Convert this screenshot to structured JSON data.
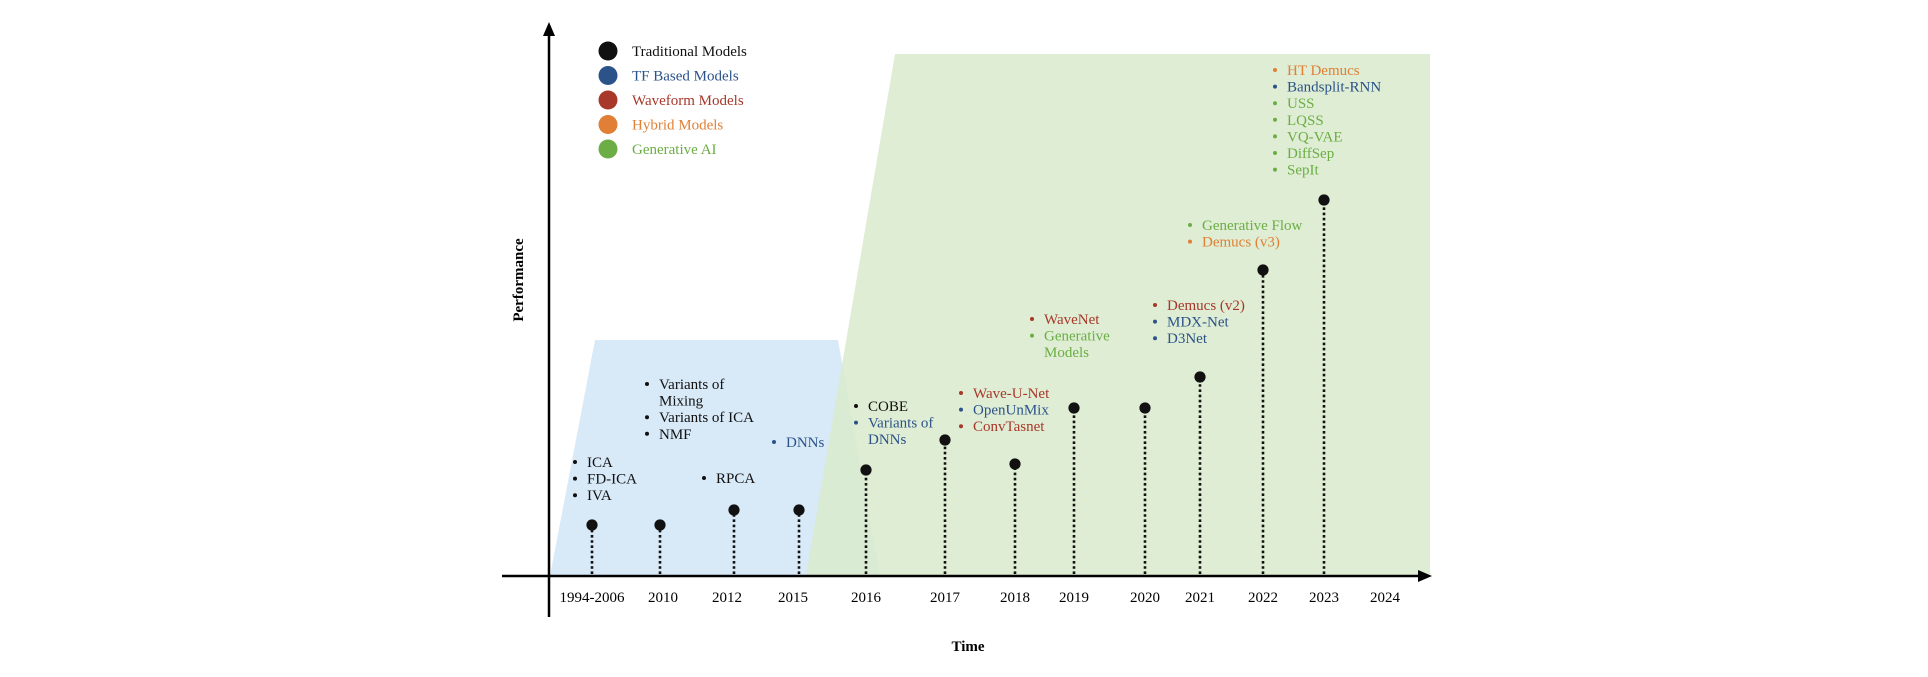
{
  "axes": {
    "x_title": "Time",
    "y_title": "Performance"
  },
  "legend": [
    {
      "label": "Traditional Models",
      "color": "#111111",
      "text_color": "#111111"
    },
    {
      "label": "TF Based Models",
      "color": "#2c5389",
      "text_color": "#2c5389"
    },
    {
      "label": "Waveform Models",
      "color": "#a8382a",
      "text_color": "#a8382a"
    },
    {
      "label": "Hybrid Models",
      "color": "#e07f35",
      "text_color": "#e07f35"
    },
    {
      "label": "Generative AI",
      "color": "#6cae45",
      "text_color": "#6cae45"
    }
  ],
  "colors": {
    "traditional": "#111111",
    "tf": "#2c5389",
    "waveform": "#a8382a",
    "hybrid": "#e07f35",
    "generative": "#6cae45",
    "region_blue": "#d8e9f8",
    "region_green": "#d9ebcd"
  },
  "time_labels": [
    "1994-2006",
    "2010",
    "2012",
    "2015",
    "2016",
    "2017",
    "2018",
    "2019",
    "2020",
    "2021",
    "2022",
    "2023",
    "2024"
  ],
  "groups": [
    {
      "items": [
        {
          "text": "ICA",
          "cat": "traditional"
        },
        {
          "text": "FD-ICA",
          "cat": "traditional"
        },
        {
          "text": "IVA",
          "cat": "traditional"
        }
      ]
    },
    {
      "items": [
        {
          "text": "Variants of",
          "cat": "traditional"
        },
        {
          "text": "Mixing",
          "cat": "traditional",
          "cont": true
        },
        {
          "text": "Variants of ICA",
          "cat": "traditional"
        },
        {
          "text": "NMF",
          "cat": "traditional"
        }
      ]
    },
    {
      "items": [
        {
          "text": "RPCA",
          "cat": "traditional"
        }
      ]
    },
    {
      "items": [
        {
          "text": "DNNs",
          "cat": "tf"
        }
      ]
    },
    {
      "items": [
        {
          "text": "COBE",
          "cat": "traditional"
        },
        {
          "text": "Variants of",
          "cat": "tf"
        },
        {
          "text": "DNNs",
          "cat": "tf",
          "cont": true
        }
      ]
    },
    {
      "items": [
        {
          "text": "Wave-U-Net",
          "cat": "waveform"
        },
        {
          "text": "OpenUnMix",
          "cat": "tf"
        },
        {
          "text": "ConvTasnet",
          "cat": "waveform"
        }
      ]
    },
    {
      "items": [
        {
          "text": "WaveNet",
          "cat": "waveform"
        },
        {
          "text": "Generative",
          "cat": "generative"
        },
        {
          "text": "Models",
          "cat": "generative",
          "cont": true
        }
      ]
    },
    {
      "items": [
        {
          "text": "Demucs (v2)",
          "cat": "waveform"
        },
        {
          "text": "MDX-Net",
          "cat": "tf"
        },
        {
          "text": "D3Net",
          "cat": "tf"
        }
      ]
    },
    {
      "items": [
        {
          "text": "Generative Flow",
          "cat": "generative"
        },
        {
          "text": "Demucs (v3)",
          "cat": "hybrid"
        }
      ]
    },
    {
      "items": [
        {
          "text": "HT Demucs",
          "cat": "hybrid"
        },
        {
          "text": "Bandsplit-RNN",
          "cat": "tf"
        },
        {
          "text": "USS",
          "cat": "generative"
        },
        {
          "text": "LQSS",
          "cat": "generative"
        },
        {
          "text": "VQ-VAE",
          "cat": "generative"
        },
        {
          "text": "DiffSep",
          "cat": "generative"
        },
        {
          "text": "SepIt",
          "cat": "generative"
        }
      ]
    }
  ]
}
